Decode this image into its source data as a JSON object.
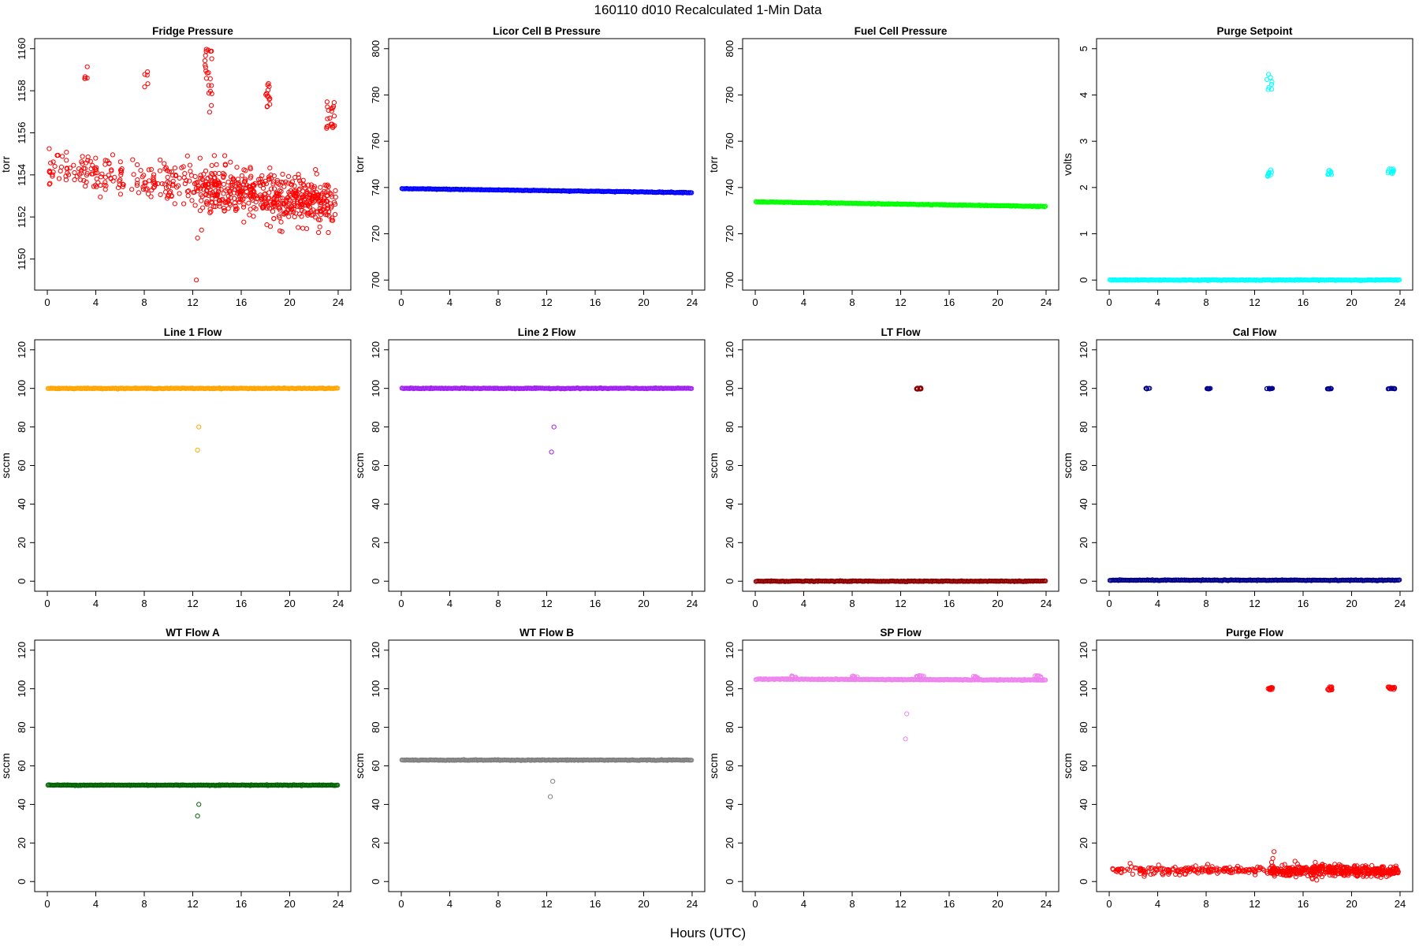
{
  "figure": {
    "title": "160110   d010   Recalculated 1-Min Data",
    "xlabel": "Hours (UTC)"
  },
  "chart_data": [
    {
      "type": "scatter",
      "title": "Fridge Pressure",
      "ylabel": "torr",
      "color": "#ff0000",
      "xlim": [
        0,
        24
      ],
      "xticks": [
        0,
        4,
        8,
        12,
        16,
        20,
        24
      ],
      "ylim": [
        1149,
        1160
      ],
      "yticks": [
        1150,
        1152,
        1154,
        1156,
        1158,
        1160
      ],
      "pattern": "fridge"
    },
    {
      "type": "scatter",
      "title": "Licor Cell B Pressure",
      "ylabel": "torr",
      "color": "#0000ff",
      "xlim": [
        0,
        24
      ],
      "xticks": [
        0,
        4,
        8,
        12,
        16,
        20,
        24
      ],
      "ylim": [
        700,
        800
      ],
      "yticks": [
        700,
        720,
        740,
        760,
        780,
        800
      ],
      "baseline": {
        "start": 739.5,
        "end": 737.8
      },
      "pattern": "dense"
    },
    {
      "type": "scatter",
      "title": "Fuel Cell Pressure",
      "ylabel": "torr",
      "color": "#00ff00",
      "xlim": [
        0,
        24
      ],
      "xticks": [
        0,
        4,
        8,
        12,
        16,
        20,
        24
      ],
      "ylim": [
        700,
        800
      ],
      "yticks": [
        700,
        720,
        740,
        760,
        780,
        800
      ],
      "baseline": {
        "start": 733.8,
        "end": 731.8
      },
      "pattern": "dense"
    },
    {
      "type": "scatter",
      "title": "Purge Setpoint",
      "ylabel": "volts",
      "color": "#00ffff",
      "xlim": [
        0,
        24
      ],
      "xticks": [
        0,
        4,
        8,
        12,
        16,
        20,
        24
      ],
      "ylim": [
        0,
        5
      ],
      "yticks": [
        0,
        1,
        2,
        3,
        4,
        5
      ],
      "baseline": {
        "start": 0,
        "end": 0
      },
      "pattern": "dense",
      "clusters": [
        {
          "x": [
            13.0,
            13.45
          ],
          "y": [
            4.1,
            4.6
          ],
          "n": 8
        },
        {
          "x": [
            13.05,
            13.45
          ],
          "y": [
            2.22,
            2.38
          ],
          "n": 10
        },
        {
          "x": [
            18.0,
            18.35
          ],
          "y": [
            2.27,
            2.37
          ],
          "n": 8
        },
        {
          "x": [
            23.0,
            23.5
          ],
          "y": [
            2.28,
            2.45
          ],
          "n": 10
        }
      ]
    },
    {
      "type": "scatter",
      "title": "Line 1 Flow",
      "ylabel": "sccm",
      "color": "#ffa500",
      "xlim": [
        0,
        24
      ],
      "xticks": [
        0,
        4,
        8,
        12,
        16,
        20,
        24
      ],
      "ylim": [
        0,
        120
      ],
      "yticks": [
        0,
        20,
        40,
        60,
        80,
        100,
        120
      ],
      "baseline": {
        "start": 100,
        "end": 100
      },
      "pattern": "dense",
      "outliers": [
        {
          "x": 12.5,
          "y": 80
        },
        {
          "x": 12.4,
          "y": 68
        }
      ]
    },
    {
      "type": "scatter",
      "title": "Line 2 Flow",
      "ylabel": "sccm",
      "color": "#a020f0",
      "xlim": [
        0,
        24
      ],
      "xticks": [
        0,
        4,
        8,
        12,
        16,
        20,
        24
      ],
      "ylim": [
        0,
        120
      ],
      "yticks": [
        0,
        20,
        40,
        60,
        80,
        100,
        120
      ],
      "baseline": {
        "start": 100,
        "end": 100
      },
      "pattern": "dense",
      "outliers": [
        {
          "x": 12.6,
          "y": 80
        },
        {
          "x": 12.4,
          "y": 67
        }
      ]
    },
    {
      "type": "scatter",
      "title": "LT Flow",
      "ylabel": "sccm",
      "color": "#8b0000",
      "xlim": [
        0,
        24
      ],
      "xticks": [
        0,
        4,
        8,
        12,
        16,
        20,
        24
      ],
      "ylim": [
        0,
        120
      ],
      "yticks": [
        0,
        20,
        40,
        60,
        80,
        100,
        120
      ],
      "baseline": {
        "start": 0,
        "end": 0
      },
      "pattern": "dense",
      "clusters": [
        {
          "x": [
            13.3,
            13.75
          ],
          "y": [
            99.6,
            100.2
          ],
          "n": 14
        }
      ]
    },
    {
      "type": "scatter",
      "title": "Cal Flow",
      "ylabel": "sccm",
      "color": "#00008b",
      "xlim": [
        0,
        24
      ],
      "xticks": [
        0,
        4,
        8,
        12,
        16,
        20,
        24
      ],
      "ylim": [
        0,
        120
      ],
      "yticks": [
        0,
        20,
        40,
        60,
        80,
        100,
        120
      ],
      "baseline": {
        "start": 0.5,
        "end": 0.5
      },
      "pattern": "dense",
      "clusters": [
        {
          "x": [
            3.0,
            3.35
          ],
          "y": [
            99.7,
            100.1
          ],
          "n": 8
        },
        {
          "x": [
            8.0,
            8.4
          ],
          "y": [
            99.7,
            100.1
          ],
          "n": 8
        },
        {
          "x": [
            13.0,
            13.5
          ],
          "y": [
            99.7,
            100.1
          ],
          "n": 12
        },
        {
          "x": [
            18.0,
            18.35
          ],
          "y": [
            99.7,
            100.1
          ],
          "n": 10
        },
        {
          "x": [
            23.0,
            23.6
          ],
          "y": [
            99.7,
            100.1
          ],
          "n": 12
        }
      ]
    },
    {
      "type": "scatter",
      "title": "WT Flow A",
      "ylabel": "sccm",
      "color": "#006400",
      "xlim": [
        0,
        24
      ],
      "xticks": [
        0,
        4,
        8,
        12,
        16,
        20,
        24
      ],
      "ylim": [
        0,
        120
      ],
      "yticks": [
        0,
        20,
        40,
        60,
        80,
        100,
        120
      ],
      "baseline": {
        "start": 50,
        "end": 50
      },
      "pattern": "dense",
      "outliers": [
        {
          "x": 12.5,
          "y": 40
        },
        {
          "x": 12.4,
          "y": 34
        }
      ]
    },
    {
      "type": "scatter",
      "title": "WT Flow B",
      "ylabel": "sccm",
      "color": "#808080",
      "xlim": [
        0,
        24
      ],
      "xticks": [
        0,
        4,
        8,
        12,
        16,
        20,
        24
      ],
      "ylim": [
        0,
        120
      ],
      "yticks": [
        0,
        20,
        40,
        60,
        80,
        100,
        120
      ],
      "baseline": {
        "start": 63,
        "end": 63
      },
      "pattern": "dense",
      "outliers": [
        {
          "x": 12.5,
          "y": 52
        },
        {
          "x": 12.3,
          "y": 44
        }
      ]
    },
    {
      "type": "scatter",
      "title": "SP Flow",
      "ylabel": "sccm",
      "color": "#ee82ee",
      "xlim": [
        0,
        24
      ],
      "xticks": [
        0,
        4,
        8,
        12,
        16,
        20,
        24
      ],
      "ylim": [
        0,
        120
      ],
      "yticks": [
        0,
        20,
        40,
        60,
        80,
        100,
        120
      ],
      "baseline": {
        "start": 105,
        "end": 104.5
      },
      "pattern": "dense",
      "outliers": [
        {
          "x": 12.5,
          "y": 87
        },
        {
          "x": 12.4,
          "y": 74
        }
      ],
      "clusters": [
        {
          "x": [
            3.0,
            3.4
          ],
          "y": [
            105.5,
            106.8
          ],
          "n": 6
        },
        {
          "x": [
            8.0,
            8.5
          ],
          "y": [
            105.5,
            106.8
          ],
          "n": 6
        },
        {
          "x": [
            13.3,
            13.9
          ],
          "y": [
            105.5,
            107
          ],
          "n": 10
        },
        {
          "x": [
            18.0,
            18.5
          ],
          "y": [
            105.5,
            106.8
          ],
          "n": 8
        },
        {
          "x": [
            23.0,
            23.6
          ],
          "y": [
            105.5,
            106.8
          ],
          "n": 10
        }
      ]
    },
    {
      "type": "scatter",
      "title": "Purge Flow",
      "ylabel": "sccm",
      "color": "#ff0000",
      "xlim": [
        0,
        24
      ],
      "xticks": [
        0,
        4,
        8,
        12,
        16,
        20,
        24
      ],
      "ylim": [
        0,
        120
      ],
      "yticks": [
        0,
        20,
        40,
        60,
        80,
        100,
        120
      ],
      "pattern": "purge",
      "clusters": [
        {
          "x": [
            13.1,
            13.5
          ],
          "y": [
            99.3,
            100.8
          ],
          "n": 12
        },
        {
          "x": [
            18.0,
            18.4
          ],
          "y": [
            99.2,
            101
          ],
          "n": 12
        },
        {
          "x": [
            23.0,
            23.6
          ],
          "y": [
            99.3,
            101
          ],
          "n": 14
        }
      ]
    }
  ]
}
